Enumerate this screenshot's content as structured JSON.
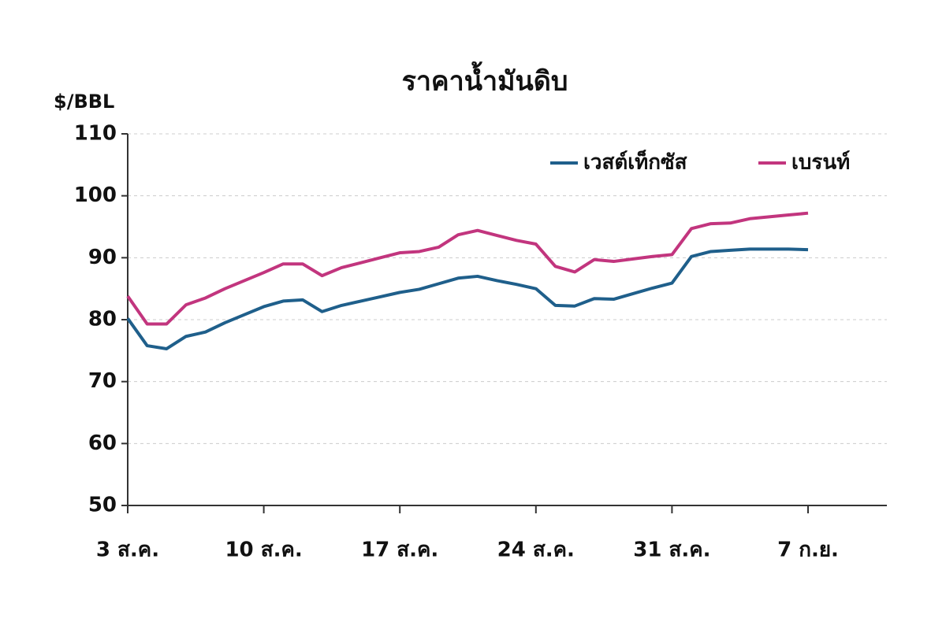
{
  "chart_data": {
    "type": "line",
    "title": "ราคาน้ำมันดิบ",
    "y_label": "$/BBL",
    "categories": [
      "3 ส.ค.",
      null,
      null,
      null,
      null,
      null,
      null,
      "10 ส.ค.",
      null,
      null,
      null,
      null,
      null,
      null,
      "17 ส.ค.",
      null,
      null,
      null,
      null,
      null,
      null,
      "24 ส.ค.",
      null,
      null,
      null,
      null,
      null,
      null,
      "31 ส.ค.",
      null,
      null,
      null,
      null,
      null,
      null,
      "7 ก.ย."
    ],
    "series": [
      {
        "name": "เวสต์เท็กซัส",
        "color": "#1f5f8b",
        "values": [
          80.2,
          75.8,
          75.3,
          77.3,
          78.0,
          79.5,
          80.8,
          82.1,
          83.0,
          83.2,
          81.3,
          82.3,
          83.0,
          83.7,
          84.4,
          84.9,
          85.8,
          86.7,
          87.0,
          86.3,
          85.7,
          85.0,
          82.3,
          82.2,
          83.4,
          83.3,
          84.2,
          85.1,
          85.9,
          90.2,
          91.0,
          91.2,
          91.4,
          91.4,
          91.4,
          91.3
        ]
      },
      {
        "name": "เบรนท์",
        "color": "#c2357e",
        "values": [
          83.8,
          79.3,
          79.3,
          82.4,
          83.5,
          85.0,
          86.3,
          87.6,
          89.0,
          89.0,
          87.1,
          88.4,
          89.2,
          90.0,
          90.8,
          91.0,
          91.7,
          93.7,
          94.4,
          93.6,
          92.8,
          92.2,
          88.6,
          87.7,
          89.7,
          89.4,
          89.8,
          90.2,
          90.5,
          94.7,
          95.5,
          95.6,
          96.3,
          96.6,
          96.9,
          97.2
        ]
      }
    ],
    "ylim": [
      50,
      110
    ],
    "yticks": [
      50,
      60,
      70,
      80,
      90,
      100,
      110
    ],
    "grid": true,
    "legend": "top-right"
  }
}
